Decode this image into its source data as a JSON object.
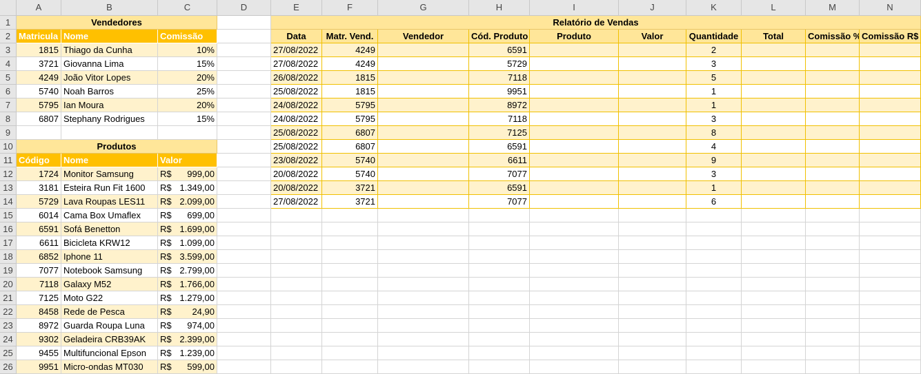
{
  "columns": [
    "A",
    "B",
    "C",
    "D",
    "E",
    "F",
    "G",
    "H",
    "I",
    "J",
    "K",
    "L",
    "M",
    "N"
  ],
  "rows": [
    "1",
    "2",
    "3",
    "4",
    "5",
    "6",
    "7",
    "8",
    "9",
    "10",
    "11",
    "12",
    "13",
    "14",
    "15",
    "16",
    "17",
    "18",
    "19",
    "20",
    "21",
    "22",
    "23",
    "24",
    "25",
    "26"
  ],
  "vendedores": {
    "title": "Vendedores",
    "headers": [
      "Matricula",
      "Nome",
      "Comissão"
    ],
    "rows": [
      [
        "1815",
        "Thiago da Cunha",
        "10%"
      ],
      [
        "3721",
        "Giovanna Lima",
        "15%"
      ],
      [
        "4249",
        "João Vitor Lopes",
        "20%"
      ],
      [
        "5740",
        "Noah Barros",
        "25%"
      ],
      [
        "5795",
        "Ian Moura",
        "20%"
      ],
      [
        "6807",
        "Stephany Rodrigues",
        "15%"
      ]
    ]
  },
  "produtos": {
    "title": "Produtos",
    "headers": [
      "Código",
      "Nome",
      "Valor"
    ],
    "currency": "R$",
    "rows": [
      [
        "1724",
        "Monitor Samsung",
        "999,00"
      ],
      [
        "3181",
        "Esteira Run Fit 1600",
        "1.349,00"
      ],
      [
        "5729",
        "Lava Roupas LES11",
        "2.099,00"
      ],
      [
        "6014",
        "Cama Box Umaflex",
        "699,00"
      ],
      [
        "6591",
        "Sofá Benetton",
        "1.699,00"
      ],
      [
        "6611",
        "Bicicleta KRW12",
        "1.099,00"
      ],
      [
        "6852",
        "Iphone 11",
        "3.599,00"
      ],
      [
        "7077",
        "Notebook Samsung",
        "2.799,00"
      ],
      [
        "7118",
        "Galaxy M52",
        "1.766,00"
      ],
      [
        "7125",
        "Moto G22",
        "1.279,00"
      ],
      [
        "8458",
        "Rede de Pesca",
        "24,90"
      ],
      [
        "8972",
        "Guarda Roupa Luna",
        "974,00"
      ],
      [
        "9302",
        "Geladeira CRB39AK",
        "2.399,00"
      ],
      [
        "9455",
        "Multifuncional Epson",
        "1.239,00"
      ],
      [
        "9951",
        "Micro-ondas MT030",
        "599,00"
      ]
    ]
  },
  "relatorio": {
    "title": "Relatório de Vendas",
    "headers": [
      "Data",
      "Matr. Vend.",
      "Vendedor",
      "Cód. Produto",
      "Produto",
      "Valor",
      "Quantidade",
      "Total",
      "Comissão %",
      "Comissão R$"
    ],
    "rows": [
      [
        "27/08/2022",
        "4249",
        "",
        "6591",
        "",
        "",
        "2",
        "",
        "",
        ""
      ],
      [
        "27/08/2022",
        "4249",
        "",
        "5729",
        "",
        "",
        "3",
        "",
        "",
        ""
      ],
      [
        "26/08/2022",
        "1815",
        "",
        "7118",
        "",
        "",
        "5",
        "",
        "",
        ""
      ],
      [
        "25/08/2022",
        "1815",
        "",
        "9951",
        "",
        "",
        "1",
        "",
        "",
        ""
      ],
      [
        "24/08/2022",
        "5795",
        "",
        "8972",
        "",
        "",
        "1",
        "",
        "",
        ""
      ],
      [
        "24/08/2022",
        "5795",
        "",
        "7118",
        "",
        "",
        "3",
        "",
        "",
        ""
      ],
      [
        "25/08/2022",
        "6807",
        "",
        "7125",
        "",
        "",
        "8",
        "",
        "",
        ""
      ],
      [
        "25/08/2022",
        "6807",
        "",
        "6591",
        "",
        "",
        "4",
        "",
        "",
        ""
      ],
      [
        "23/08/2022",
        "5740",
        "",
        "6611",
        "",
        "",
        "9",
        "",
        "",
        ""
      ],
      [
        "20/08/2022",
        "5740",
        "",
        "7077",
        "",
        "",
        "3",
        "",
        "",
        ""
      ],
      [
        "20/08/2022",
        "3721",
        "",
        "6591",
        "",
        "",
        "1",
        "",
        "",
        ""
      ],
      [
        "27/08/2022",
        "3721",
        "",
        "7077",
        "",
        "",
        "6",
        "",
        "",
        ""
      ]
    ]
  }
}
